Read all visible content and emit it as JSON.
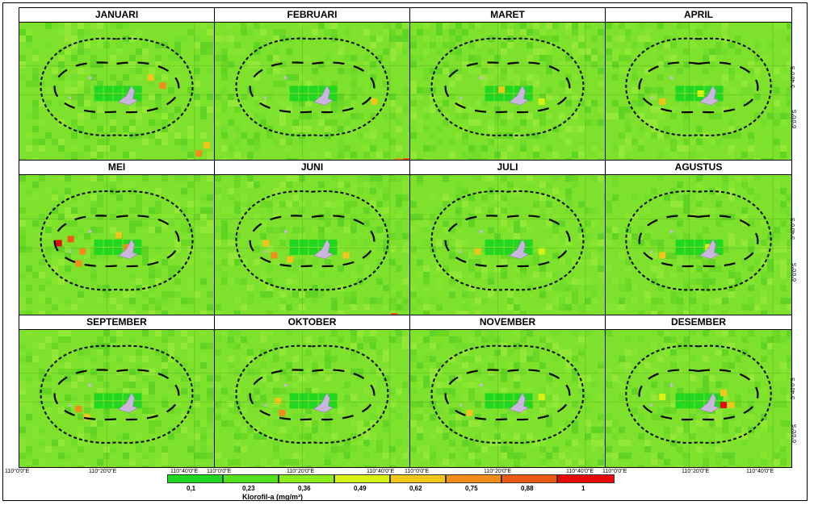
{
  "panels": [
    {
      "title": "JANUARI"
    },
    {
      "title": "FEBRUARI"
    },
    {
      "title": "MARET"
    },
    {
      "title": "APRIL"
    },
    {
      "title": "MEI"
    },
    {
      "title": "JUNI"
    },
    {
      "title": "JULI"
    },
    {
      "title": "AGUSTUS"
    },
    {
      "title": "SEPTEMBER"
    },
    {
      "title": "OKTOBER"
    },
    {
      "title": "NOVEMBER"
    },
    {
      "title": "DESEMBER"
    }
  ],
  "lon_labels": [
    "110°0'0\"E",
    "110°20'0\"E",
    "110°40'0\"E"
  ],
  "lat_labels": [
    "5°40'0\"S",
    "6°0'0\"S"
  ],
  "legend": {
    "title": "Klorofil-a (mg/m³)",
    "values": [
      "0,1",
      "0,23",
      "0,36",
      "0,49",
      "0,62",
      "0,75",
      "0,88",
      "1"
    ],
    "colors": [
      "#1fd81f",
      "#54e21e",
      "#8aec1c",
      "#d8f211",
      "#f2c51a",
      "#f28d1a",
      "#ee5a14",
      "#e80808"
    ]
  },
  "colors": {
    "sea_base": "#7ee22c",
    "island": "#c9b6dc",
    "boundary": "#000000"
  }
}
